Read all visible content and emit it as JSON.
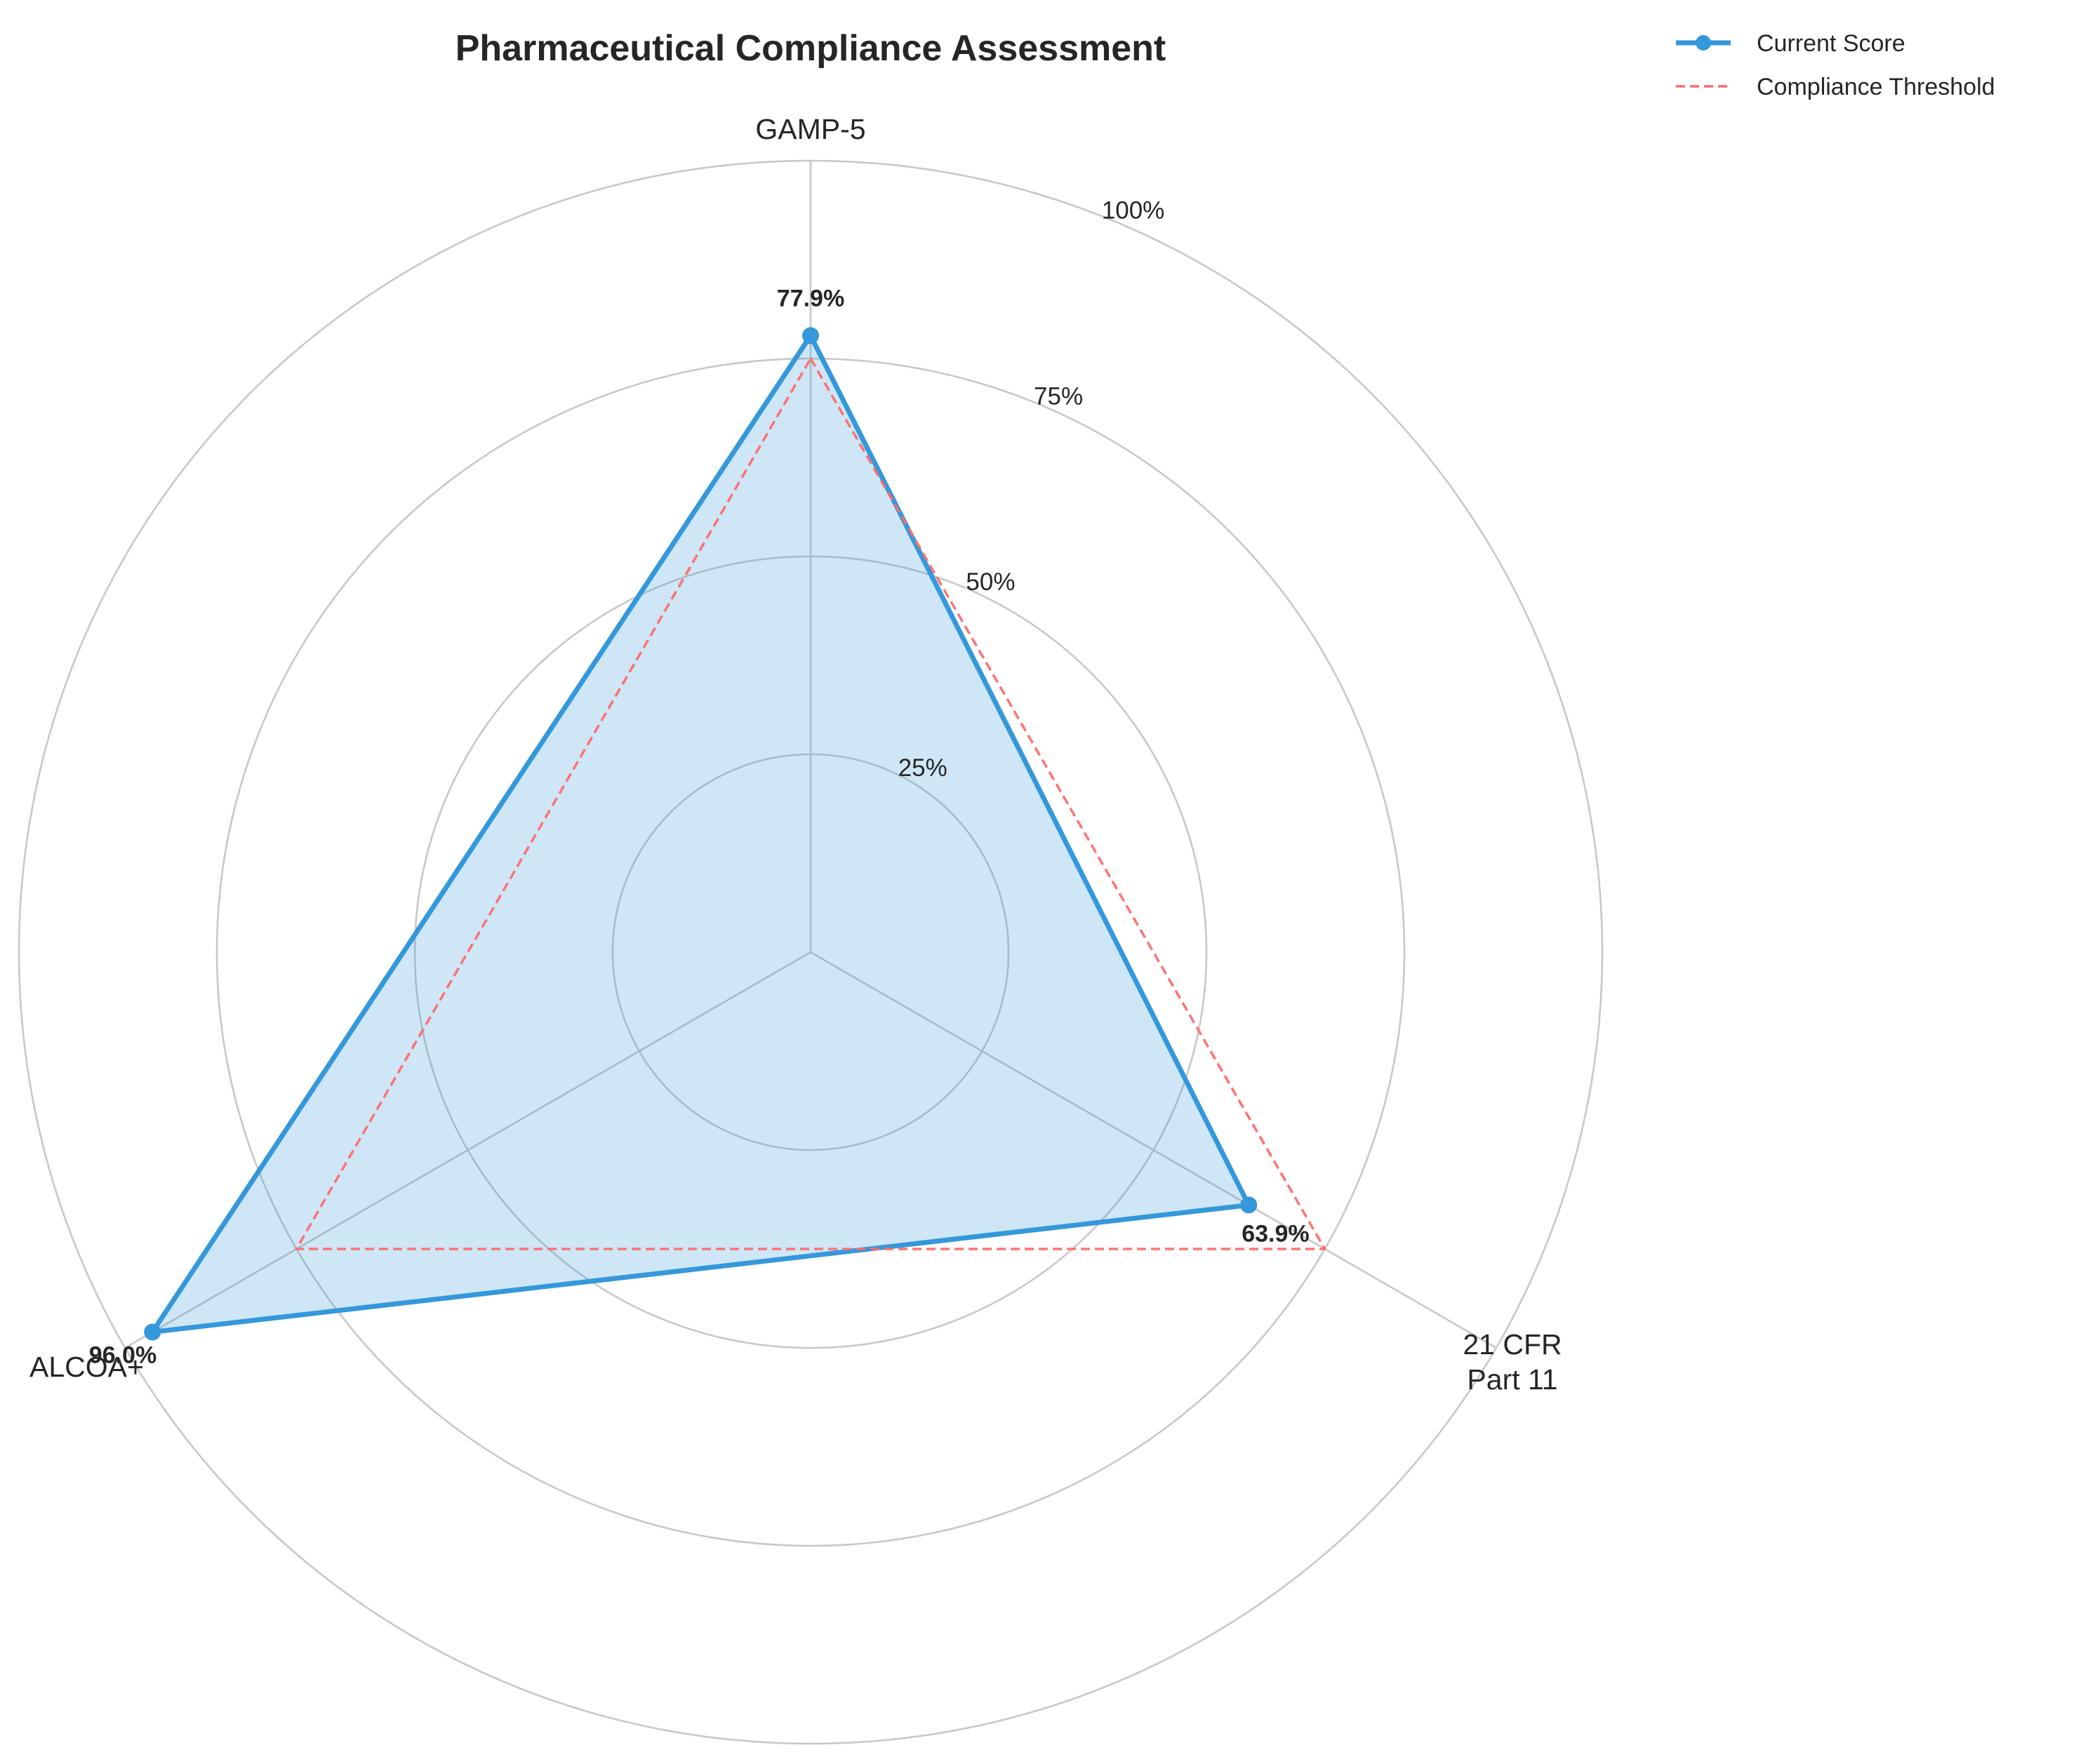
{
  "chart_data": {
    "type": "radar",
    "title": "Pharmaceutical Compliance Assessment",
    "categories": [
      "GAMP-5",
      "21 CFR\nPart 11",
      "ALCOA+"
    ],
    "series": [
      {
        "name": "Current Score",
        "values": [
          77.9,
          63.9,
          96.0
        ],
        "color": "#3498db",
        "style": "solid",
        "marker": "circle",
        "fill": true
      },
      {
        "name": "Compliance Threshold",
        "values": [
          75,
          75,
          75
        ],
        "color": "#ff6b6b",
        "style": "dashed",
        "marker": "none",
        "fill": false
      }
    ],
    "value_labels": [
      "77.9%",
      "63.9%",
      "96.0%"
    ],
    "radial_ticks": [
      25,
      50,
      75,
      100
    ],
    "radial_tick_labels": [
      "25%",
      "50%",
      "75%",
      "100%"
    ],
    "rlim": [
      0,
      100
    ],
    "grid": true,
    "legend_position": "top-right"
  }
}
